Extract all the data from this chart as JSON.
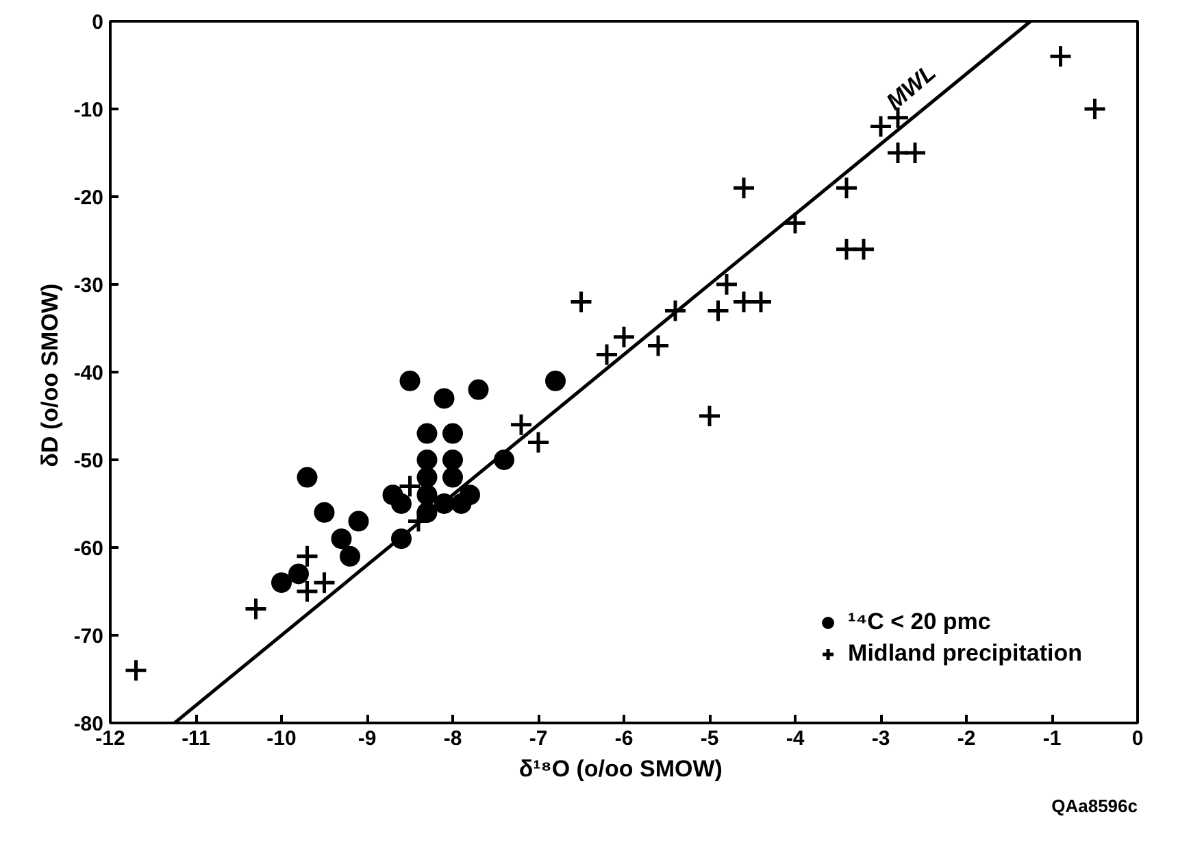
{
  "chart_data": {
    "type": "scatter",
    "xlabel": "δ¹⁸O  (o/oo SMOW)",
    "ylabel": "δD  (o/oo SMOW)",
    "xlim": [
      -12,
      0
    ],
    "ylim": [
      -80,
      0
    ],
    "xticks": [
      -12,
      -11,
      -10,
      -9,
      -8,
      -7,
      -6,
      -5,
      -4,
      -3,
      -2,
      -1,
      0
    ],
    "yticks": [
      -80,
      -70,
      -60,
      -50,
      -40,
      -30,
      -20,
      -10,
      0
    ],
    "grid": false,
    "legend": "bottom right",
    "annotations": [
      "QAa8596c"
    ],
    "series": [
      {
        "name": "¹⁴C < 20 pmc",
        "color": "#000000",
        "marker": "circle",
        "x": [
          -8.5,
          -8.1,
          -7.7,
          -6.8,
          -9.7,
          -8.3,
          -8.0,
          -8.3,
          -8.0,
          -8.3,
          -8.0,
          -8.3,
          -8.7,
          -8.6,
          -7.9,
          -7.8,
          -8.1,
          -8.3,
          -9.5,
          -9.1,
          -9.3,
          -9.2,
          -8.6,
          -9.8,
          -10.0,
          -7.4
        ],
        "values": [
          -41,
          -43,
          -42,
          -41,
          -52,
          -47,
          -47,
          -50,
          -50,
          -52,
          -52,
          -54,
          -54,
          -55,
          -55,
          -54,
          -55,
          -56,
          -56,
          -57,
          -59,
          -61,
          -59,
          -63,
          -64,
          -50
        ]
      },
      {
        "name": "Midland precipitation",
        "color": "#000000",
        "marker": "cross",
        "x": [
          -11.7,
          -10.3,
          -9.7,
          -9.7,
          -9.5,
          -8.5,
          -8.4,
          -7.2,
          -7.0,
          -6.5,
          -6.2,
          -6.0,
          -5.6,
          -5.4,
          -5.0,
          -4.9,
          -4.8,
          -4.6,
          -4.4,
          -4.6,
          -4.0,
          -3.4,
          -3.4,
          -3.2,
          -3.0,
          -2.8,
          -2.8,
          -2.6,
          -0.9,
          -0.5
        ],
        "values": [
          -74,
          -67,
          -61,
          -65,
          -64,
          -53,
          -57,
          -46,
          -48,
          -32,
          -38,
          -36,
          -37,
          -33,
          -45,
          -33,
          -30,
          -32,
          -32,
          -19,
          -23,
          -19,
          -26,
          -26,
          -12,
          -11,
          -15,
          -15,
          -4,
          -10
        ]
      },
      {
        "name": "MWL",
        "type": "line",
        "color": "#000000",
        "line_style": "solid",
        "x": [
          -11.25,
          -1.25
        ],
        "values": [
          -80,
          0
        ]
      }
    ]
  }
}
